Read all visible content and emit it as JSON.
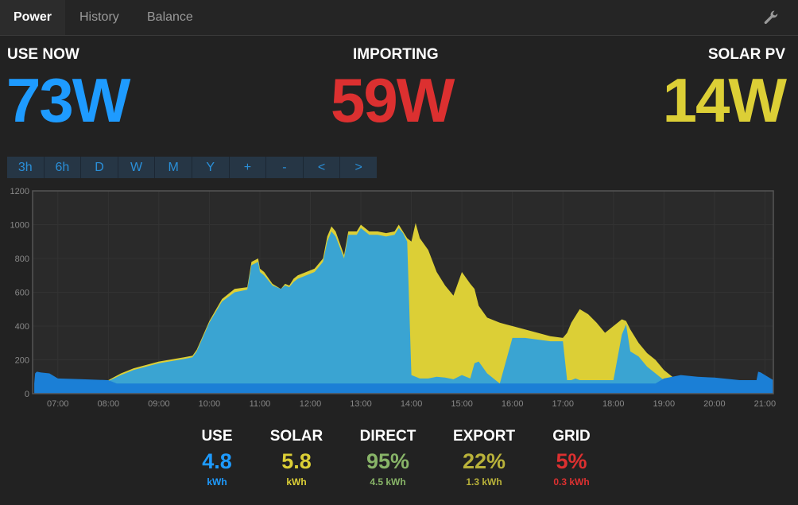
{
  "tabs": [
    {
      "label": "Power"
    },
    {
      "label": "History"
    },
    {
      "label": "Balance"
    }
  ],
  "settings_icon": "wrench-icon",
  "stats": {
    "use": {
      "label": "USE NOW",
      "value": "73W",
      "color": "#1e9bff"
    },
    "import": {
      "label": "IMPORTING",
      "value": "59W",
      "color": "#dc3030"
    },
    "solar": {
      "label": "SOLAR PV",
      "value": "14W",
      "color": "#dccf36"
    }
  },
  "ranges": [
    "3h",
    "6h",
    "D",
    "W",
    "M",
    "Y",
    "+",
    "-",
    "<",
    ">"
  ],
  "chart_data": {
    "type": "area",
    "x_ticks": [
      "07:00",
      "08:00",
      "09:00",
      "10:00",
      "11:00",
      "12:00",
      "13:00",
      "14:00",
      "15:00",
      "16:00",
      "17:00",
      "18:00",
      "19:00",
      "20:00",
      "21:00"
    ],
    "y_ticks": [
      "0",
      "200",
      "400",
      "600",
      "800",
      "1000",
      "1200"
    ],
    "ylim": [
      0,
      1200
    ],
    "xlim": [
      "06:30",
      "21:10"
    ],
    "grid": true,
    "series": [
      {
        "color": "#dccf36",
        "x": [
          "06:32",
          "07:00",
          "07:30",
          "08:00",
          "08:15",
          "08:30",
          "09:00",
          "09:30",
          "09:40",
          "09:45",
          "10:00",
          "10:15",
          "10:30",
          "10:45",
          "10:50",
          "10:58",
          "11:00",
          "11:05",
          "11:15",
          "11:25",
          "11:30",
          "11:35",
          "11:40",
          "11:45",
          "11:55",
          "12:05",
          "12:15",
          "12:20",
          "12:25",
          "12:30",
          "12:40",
          "12:45",
          "12:55",
          "13:00",
          "13:05",
          "13:10",
          "13:20",
          "13:30",
          "13:40",
          "13:45",
          "13:50",
          "13:55",
          "14:00",
          "14:05",
          "14:10",
          "14:20",
          "14:30",
          "14:40",
          "14:50",
          "15:00",
          "15:10",
          "15:15",
          "15:20",
          "15:30",
          "15:45",
          "16:00",
          "16:15",
          "16:30",
          "16:45",
          "17:00",
          "17:05",
          "17:10",
          "17:15",
          "17:20",
          "17:30",
          "17:40",
          "17:50",
          "18:00",
          "18:10",
          "18:15",
          "18:20",
          "18:30",
          "18:40",
          "18:50",
          "19:00",
          "19:10",
          "19:20",
          "19:30",
          "19:40",
          "19:50",
          "20:00"
        ],
        "values": [
          0,
          10,
          40,
          80,
          120,
          150,
          190,
          215,
          225,
          260,
          430,
          560,
          620,
          630,
          780,
          800,
          740,
          720,
          650,
          620,
          650,
          640,
          680,
          700,
          720,
          740,
          800,
          930,
          990,
          960,
          820,
          960,
          960,
          1000,
          980,
          960,
          960,
          950,
          960,
          1000,
          960,
          920,
          900,
          1010,
          920,
          850,
          720,
          640,
          580,
          720,
          650,
          620,
          520,
          450,
          420,
          400,
          380,
          360,
          340,
          330,
          360,
          420,
          460,
          500,
          470,
          420,
          360,
          400,
          440,
          430,
          380,
          300,
          240,
          200,
          140,
          100,
          70,
          40,
          20,
          8,
          0
        ]
      },
      {
        "color": "#3aa4d2",
        "x": [
          "06:32",
          "07:00",
          "07:30",
          "08:00",
          "08:15",
          "08:30",
          "09:00",
          "09:30",
          "09:40",
          "09:45",
          "10:00",
          "10:15",
          "10:30",
          "10:45",
          "10:50",
          "10:58",
          "11:00",
          "11:05",
          "11:15",
          "11:25",
          "11:30",
          "11:35",
          "11:40",
          "11:45",
          "11:55",
          "12:05",
          "12:15",
          "12:20",
          "12:25",
          "12:30",
          "12:40",
          "12:45",
          "12:55",
          "13:00",
          "13:05",
          "13:10",
          "13:20",
          "13:30",
          "13:40",
          "13:45",
          "13:50",
          "13:55",
          "14:00",
          "14:05",
          "14:10",
          "14:20",
          "14:30",
          "14:40",
          "14:50",
          "15:00",
          "15:10",
          "15:15",
          "15:20",
          "15:30",
          "15:45",
          "16:00",
          "16:15",
          "16:30",
          "16:45",
          "17:00",
          "17:05",
          "17:10",
          "17:15",
          "17:20",
          "17:30",
          "17:40",
          "17:50",
          "18:00",
          "18:10",
          "18:15",
          "18:20",
          "18:30",
          "18:40",
          "18:50",
          "19:00",
          "19:10",
          "19:20",
          "19:30",
          "19:40",
          "19:50",
          "20:00"
        ],
        "values": [
          0,
          10,
          40,
          75,
          110,
          140,
          180,
          205,
          215,
          250,
          420,
          545,
          600,
          615,
          760,
          780,
          720,
          700,
          640,
          620,
          640,
          630,
          660,
          680,
          700,
          720,
          780,
          900,
          960,
          930,
          800,
          940,
          940,
          980,
          960,
          940,
          940,
          930,
          940,
          980,
          950,
          900,
          110,
          100,
          90,
          90,
          100,
          95,
          85,
          110,
          90,
          180,
          190,
          120,
          60,
          330,
          330,
          320,
          310,
          310,
          80,
          80,
          90,
          80,
          80,
          80,
          80,
          80,
          350,
          410,
          250,
          220,
          160,
          120,
          80,
          60,
          40,
          25,
          10,
          5,
          0
        ]
      },
      {
        "color": "#1b7fd6",
        "x": [
          "06:32",
          "06:33",
          "06:35",
          "06:40",
          "06:50",
          "07:00",
          "07:30",
          "08:00",
          "08:10",
          "18:50",
          "19:00",
          "19:20",
          "19:40",
          "20:00",
          "20:30",
          "20:50",
          "20:52",
          "20:55",
          "21:10"
        ],
        "values": [
          60,
          120,
          130,
          125,
          120,
          90,
          85,
          80,
          60,
          60,
          90,
          110,
          100,
          95,
          80,
          80,
          130,
          125,
          80
        ]
      }
    ]
  },
  "summary": [
    {
      "label": "USE",
      "value": "4.8",
      "unit": "kWh",
      "color": "#1e9bff"
    },
    {
      "label": "SOLAR",
      "value": "5.8",
      "unit": "kWh",
      "color": "#dccf36"
    },
    {
      "label": "DIRECT",
      "value": "95%",
      "unit": "4.5 kWh",
      "color": "#88b468"
    },
    {
      "label": "EXPORT",
      "value": "22%",
      "unit": "1.3 kWh",
      "color": "#b9b23a"
    },
    {
      "label": "GRID",
      "value": "5%",
      "unit": "0.3 kWh",
      "color": "#dc3030"
    }
  ]
}
